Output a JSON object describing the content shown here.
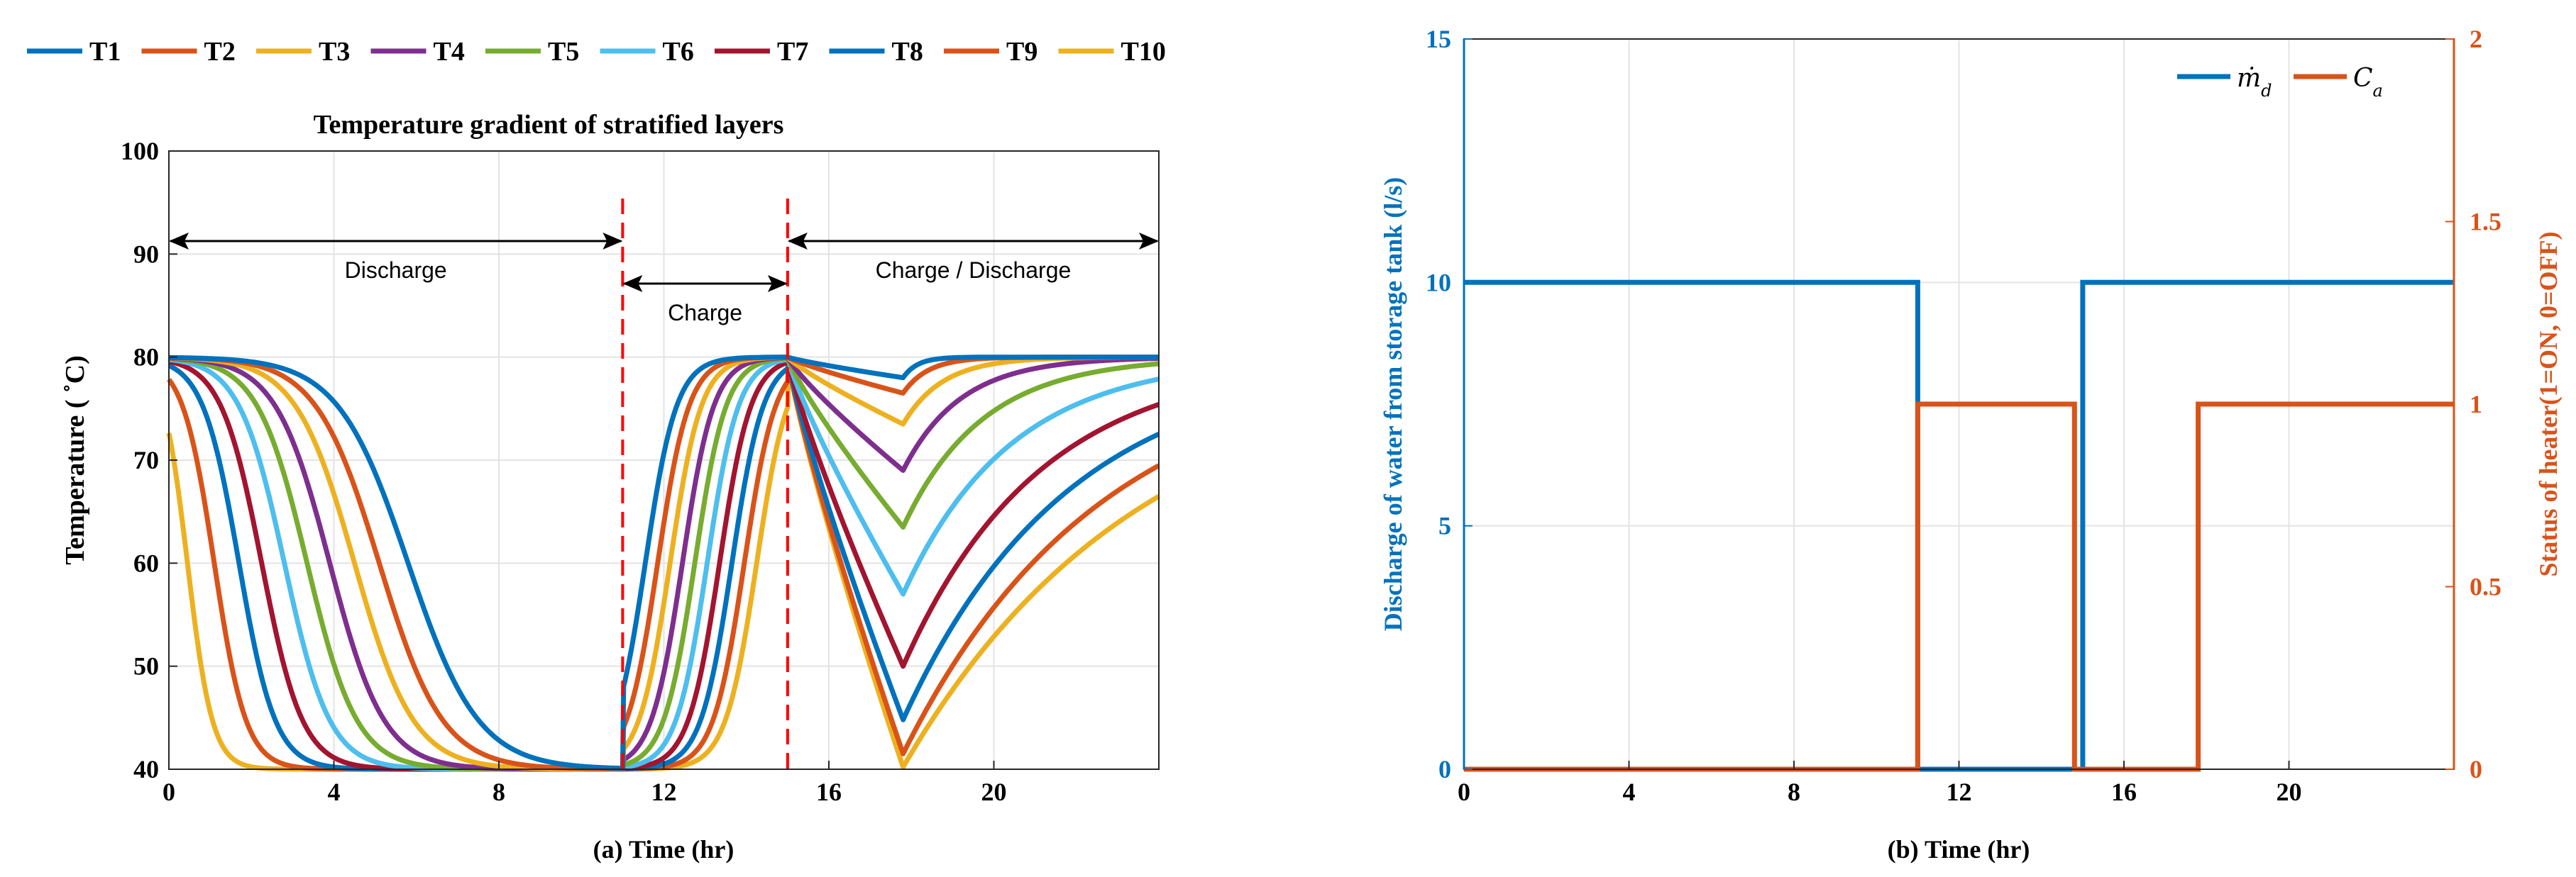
{
  "colors": {
    "T1": "#0072BD",
    "T2": "#D95319",
    "T3": "#EDB120",
    "T4": "#7E2F8E",
    "T5": "#77AC30",
    "T6": "#4DBEEE",
    "T7": "#A2142F",
    "T8": "#0072BD",
    "T9": "#D95319",
    "T10": "#EDB120",
    "right_axis": "#D95319",
    "left_axis_b": "#0072BD",
    "marker": "#FF0000"
  },
  "chart_data": [
    {
      "type": "line",
      "title": "Temperature gradient of stratified layers",
      "xlabel": "(a) Time (hr)",
      "ylabel": "Temperature ( ˚C)",
      "xlim": [
        0,
        24
      ],
      "ylim": [
        40,
        100
      ],
      "xticks": [
        0,
        4,
        8,
        12,
        16,
        20
      ],
      "yticks": [
        40,
        50,
        60,
        70,
        80,
        90,
        100
      ],
      "grid": true,
      "legend": {
        "position": "top",
        "entries": [
          "T1",
          "T2",
          "T3",
          "T4",
          "T5",
          "T6",
          "T7",
          "T8",
          "T9",
          "T10"
        ]
      },
      "phases": [
        {
          "label": "Discharge",
          "start": 0,
          "end": 11
        },
        {
          "label": "Charge",
          "start": 11,
          "end": 15
        },
        {
          "label": "Charge / Discharge",
          "start": 15,
          "end": 24
        }
      ],
      "markers_x": [
        11,
        15
      ],
      "series": [
        {
          "name": "T1",
          "disch_mid": 5.8,
          "disch_w": 1.55,
          "charge_mid": 11.55,
          "min_b": 78.0,
          "recov": 0.4
        },
        {
          "name": "T2",
          "disch_mid": 5.1,
          "disch_w": 1.4,
          "charge_mid": 11.85,
          "min_b": 76.5,
          "recov": 0.7
        },
        {
          "name": "T3",
          "disch_mid": 4.5,
          "disch_w": 1.3,
          "charge_mid": 12.15,
          "min_b": 73.5,
          "recov": 1.1
        },
        {
          "name": "T4",
          "disch_mid": 3.9,
          "disch_w": 1.2,
          "charge_mid": 12.45,
          "min_b": 69.0,
          "recov": 1.6
        },
        {
          "name": "T5",
          "disch_mid": 3.35,
          "disch_w": 1.1,
          "charge_mid": 12.75,
          "min_b": 63.5,
          "recov": 2.2
        },
        {
          "name": "T6",
          "disch_mid": 2.8,
          "disch_w": 1.0,
          "charge_mid": 13.05,
          "min_b": 57.0,
          "recov": 3.0
        },
        {
          "name": "T7",
          "disch_mid": 2.25,
          "disch_w": 0.9,
          "charge_mid": 13.35,
          "min_b": 50.0,
          "recov": 3.8
        },
        {
          "name": "T8",
          "disch_mid": 1.7,
          "disch_w": 0.8,
          "charge_mid": 13.65,
          "min_b": 44.8,
          "recov": 4.6
        },
        {
          "name": "T9",
          "disch_mid": 1.1,
          "disch_w": 0.7,
          "charge_mid": 13.95,
          "min_b": 41.5,
          "recov": 5.5
        },
        {
          "name": "T10",
          "disch_mid": 0.45,
          "disch_w": 0.55,
          "charge_mid": 14.25,
          "min_b": 40.2,
          "recov": 6.6
        }
      ]
    },
    {
      "type": "line",
      "xlabel": "(b) Time (hr)",
      "ylabel_left": "Discharge of water from storage tank (l/s)",
      "ylabel_right": "Status of heater(1=ON, 0=OFF)",
      "xlim": [
        0,
        24
      ],
      "ylim_left": [
        0,
        15
      ],
      "ylim_right": [
        0,
        2
      ],
      "xticks": [
        0,
        4,
        8,
        12,
        16,
        20
      ],
      "yticks_left": [
        0,
        5,
        10,
        15
      ],
      "yticks_right": [
        0,
        0.5,
        1,
        1.5,
        2
      ],
      "grid": true,
      "legend": {
        "position": "top-right",
        "entries": [
          "m_d (ṁd)",
          "C_a"
        ]
      },
      "series": [
        {
          "name": "ṁd",
          "axis": "left",
          "points": [
            [
              0,
              10
            ],
            [
              11,
              10
            ],
            [
              11,
              0
            ],
            [
              15,
              0
            ],
            [
              15,
              10
            ],
            [
              24,
              10
            ]
          ]
        },
        {
          "name": "Ca",
          "axis": "right",
          "points": [
            [
              0,
              0
            ],
            [
              11,
              0
            ],
            [
              11,
              1
            ],
            [
              14.8,
              1
            ],
            [
              14.8,
              0
            ],
            [
              17.8,
              0
            ],
            [
              17.8,
              1
            ],
            [
              24,
              1
            ]
          ]
        }
      ]
    }
  ]
}
